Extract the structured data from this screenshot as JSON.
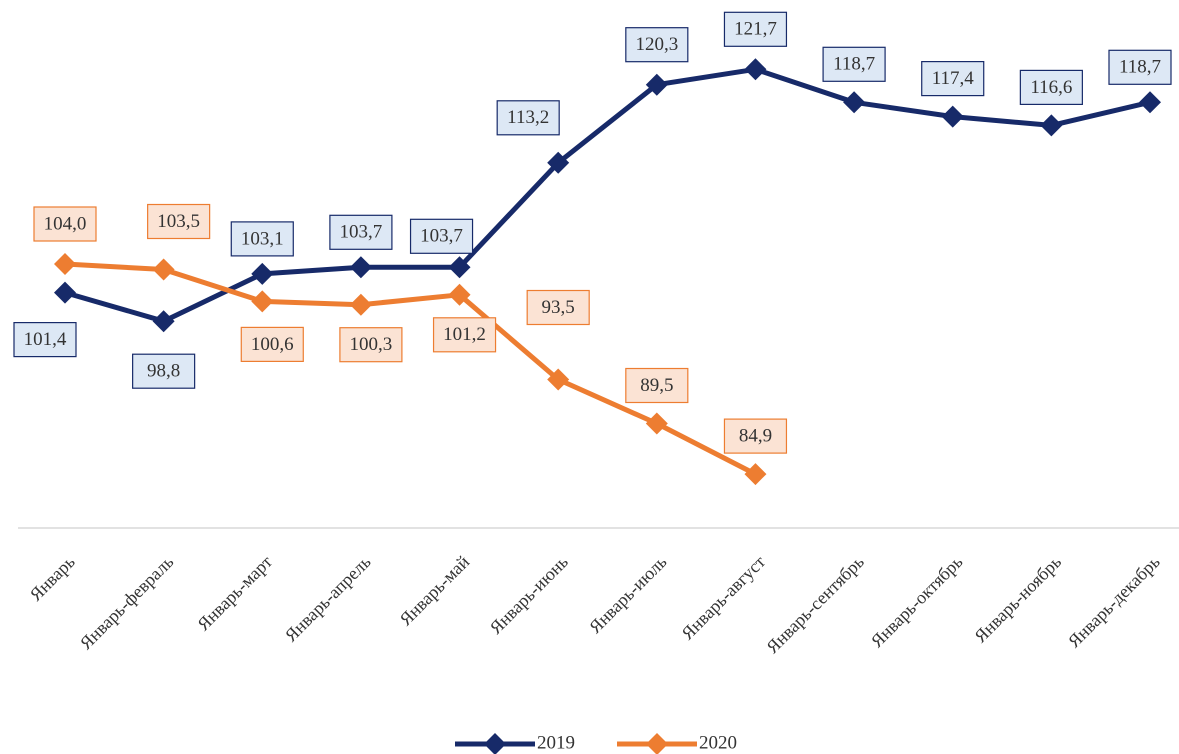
{
  "chart_data": {
    "type": "line",
    "categories": [
      "Январь",
      "Январь-февраль",
      "Январь-март",
      "Январь-апрель",
      "Январь-май",
      "Январь-июнь",
      "Январь-июль",
      "Январь-август",
      "Январь-сентябрь",
      "Январь-октябрь",
      "Январь-ноябрь",
      "Январь-декабрь"
    ],
    "series": [
      {
        "name": "2019",
        "color": "#172a69",
        "values": [
          101.4,
          98.8,
          103.1,
          103.7,
          103.7,
          113.2,
          120.3,
          121.7,
          118.7,
          117.4,
          116.6,
          118.7
        ],
        "value_labels": [
          "101,4",
          "98,8",
          "103,1",
          "103,7",
          "103,7",
          "113,2",
          "120,3",
          "121,7",
          "118,7",
          "117,4",
          "116,6",
          "118,7"
        ]
      },
      {
        "name": "2020",
        "color": "#ed7d31",
        "values": [
          104.0,
          103.5,
          100.6,
          100.3,
          101.2,
          93.5,
          89.5,
          84.9,
          null,
          null,
          null,
          null
        ],
        "value_labels": [
          "104,0",
          "103,5",
          "100,6",
          "100,3",
          "101,2",
          "93,5",
          "89,5",
          "84,9",
          null,
          null,
          null,
          null
        ]
      }
    ],
    "ylim": [
      80,
      128
    ],
    "legend": "bottom"
  }
}
